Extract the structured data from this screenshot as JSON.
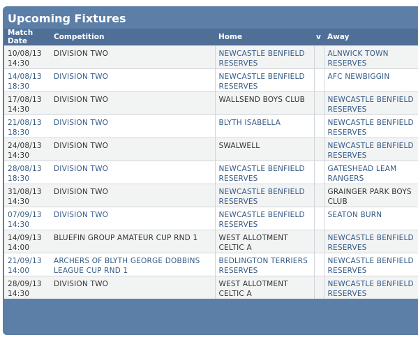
{
  "panel": {
    "title": "Upcoming Fixtures"
  },
  "columns": {
    "date": "Match Date",
    "competition": "Competition",
    "home": "Home",
    "vs": "v",
    "away": "Away"
  },
  "fixtures": [
    {
      "date": "10/08/13",
      "time": "14:30",
      "competition": "DIVISION TWO",
      "home": "NEWCASTLE BENFIELD RESERVES",
      "away": "ALNWICK TOWN RESERVES"
    },
    {
      "date": "14/08/13",
      "time": "18:30",
      "competition": "DIVISION TWO",
      "home": "NEWCASTLE BENFIELD RESERVES",
      "away": "AFC NEWBIGGIN"
    },
    {
      "date": "17/08/13",
      "time": "14:30",
      "competition": "DIVISION TWO",
      "home": "WALLSEND BOYS CLUB",
      "away": "NEWCASTLE BENFIELD RESERVES"
    },
    {
      "date": "21/08/13",
      "time": "18:30",
      "competition": "DIVISION TWO",
      "home": "BLYTH ISABELLA",
      "away": "NEWCASTLE BENFIELD RESERVES"
    },
    {
      "date": "24/08/13",
      "time": "14:30",
      "competition": "DIVISION TWO",
      "home": "SWALWELL",
      "away": "NEWCASTLE BENFIELD RESERVES"
    },
    {
      "date": "28/08/13",
      "time": "18:30",
      "competition": "DIVISION TWO",
      "home": "NEWCASTLE BENFIELD RESERVES",
      "away": "GATESHEAD LEAM RANGERS"
    },
    {
      "date": "31/08/13",
      "time": "14:30",
      "competition": "DIVISION TWO",
      "home": "NEWCASTLE BENFIELD RESERVES",
      "away": "GRAINGER PARK BOYS CLUB"
    },
    {
      "date": "07/09/13",
      "time": "14:30",
      "competition": "DIVISION TWO",
      "home": "NEWCASTLE BENFIELD RESERVES",
      "away": "SEATON BURN"
    },
    {
      "date": "14/09/13",
      "time": "14:00",
      "competition": "BLUEFIN GROUP AMATEUR CUP RND 1",
      "home": "WEST ALLOTMENT CELTIC A",
      "away": "NEWCASTLE BENFIELD RESERVES"
    },
    {
      "date": "21/09/13",
      "time": "14:00",
      "competition": "ARCHERS OF BLYTH GEORGE DOBBINS LEAGUE CUP RND 1",
      "home": "BEDLINGTON TERRIERS RESERVES",
      "away": "NEWCASTLE BENFIELD RESERVES"
    },
    {
      "date": "28/09/13",
      "time": "14:30",
      "competition": "DIVISION TWO",
      "home": "WEST ALLOTMENT CELTIC A",
      "away": "NEWCASTLE BENFIELD RESERVES"
    }
  ]
}
